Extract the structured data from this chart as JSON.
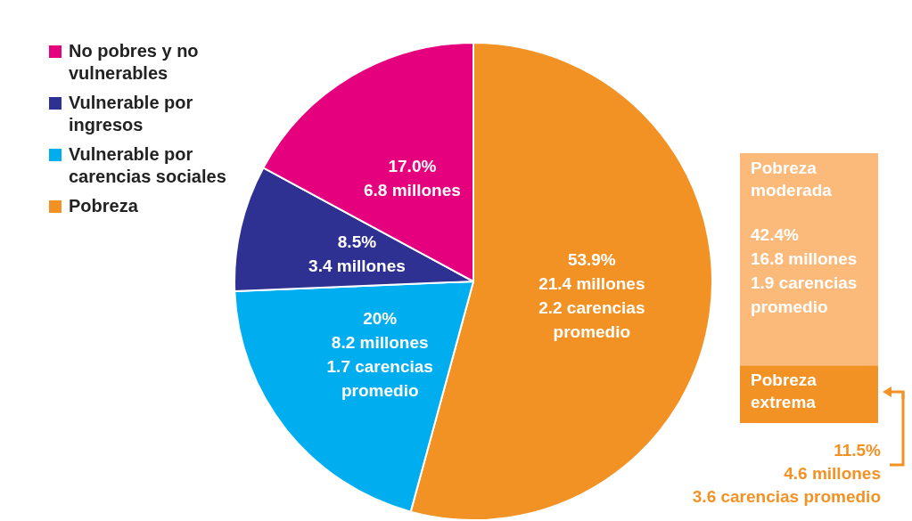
{
  "chart_data": [
    {
      "type": "pie",
      "categories": [
        "Pobreza",
        "Vulnerable por carencias sociales",
        "Vulnerable por ingresos",
        "No pobres y no vulnerables"
      ],
      "values": [
        53.9,
        20,
        8.5,
        17.0
      ],
      "colors": [
        "#f39224",
        "#00aeef",
        "#2e3192",
        "#e5007e"
      ],
      "value_labels": [
        "53.9%\n21.4 millones\n2.2 carencias\npromedio",
        "20%\n8.2 millones\n1.7 carencias\npromedio",
        "8.5%\n3.4 millones",
        "17.0%\n6.8 millones"
      ],
      "legend": "top left"
    },
    {
      "type": "bar",
      "stacked": true,
      "categories": [
        null
      ],
      "series": [
        {
          "name": "Pobreza extrema",
          "color": "#f39224",
          "values": [
            11.5
          ],
          "value_labels": [
            "11.5%\n4.6 millones\n3.6 carencias promedio"
          ]
        },
        {
          "name": "Pobreza moderada",
          "color": "#fbb97a",
          "values": [
            42.4
          ],
          "value_labels": [
            "42.4%\n16.8 millones\n1.9 carencias\npromedio"
          ]
        }
      ]
    }
  ]
}
